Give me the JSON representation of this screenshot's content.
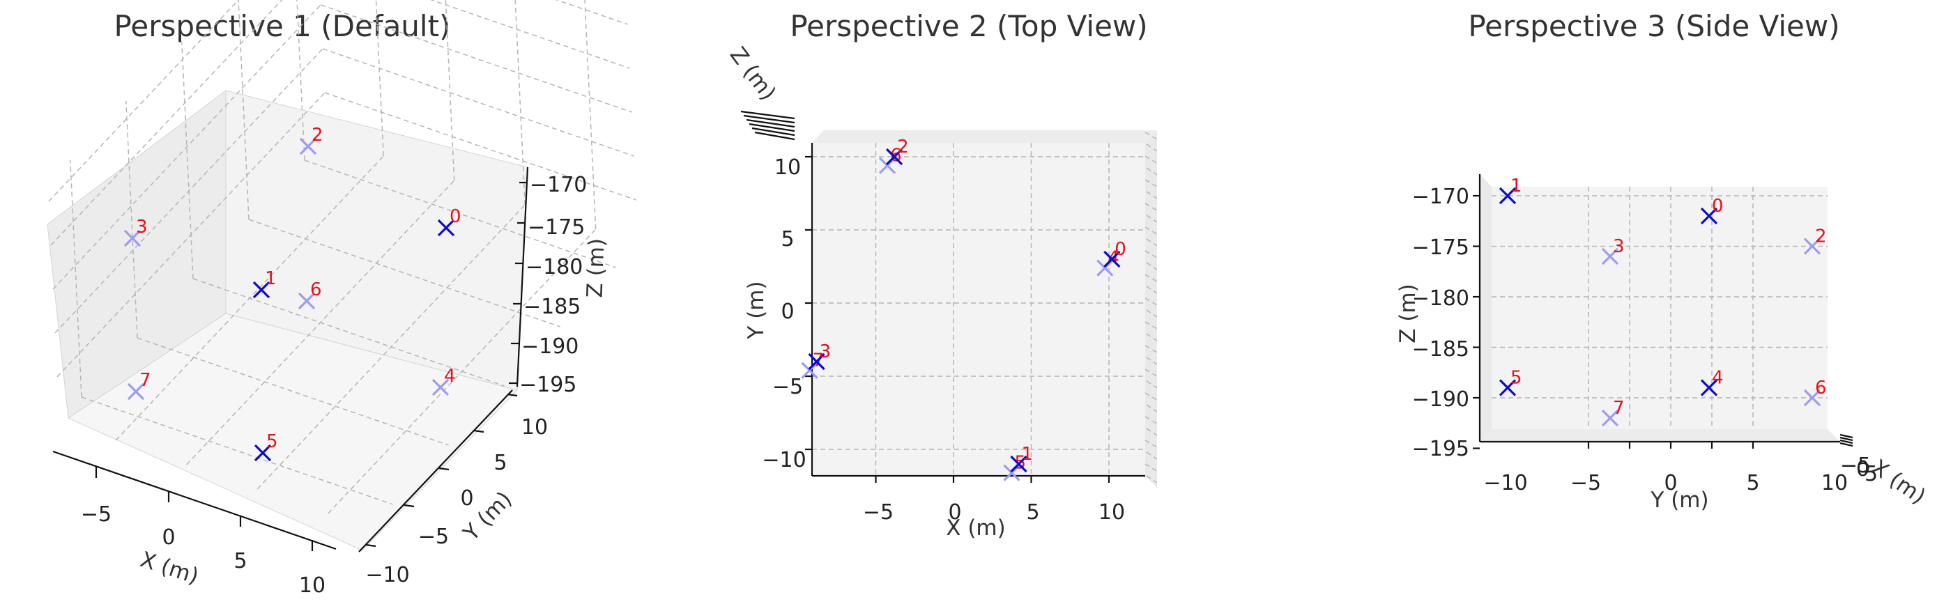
{
  "colors": {
    "marker_near": "#0a0ad2",
    "marker_far": "#9c9cf0",
    "point_label": "#e8101a",
    "pane": "#f2f2f2",
    "title": "#333333"
  },
  "chart_data": {
    "type": "scatter",
    "marker": "x",
    "points": [
      {
        "label": "0",
        "x": 11,
        "y": 3,
        "z": -172
      },
      {
        "label": "1",
        "x": 5,
        "y": -11,
        "z": -170
      },
      {
        "label": "2",
        "x": -3,
        "y": 10,
        "z": -175
      },
      {
        "label": "3",
        "x": -8,
        "y": -4,
        "z": -176
      },
      {
        "label": "4",
        "x": 11,
        "y": 3,
        "z": -189
      },
      {
        "label": "5",
        "x": 5,
        "y": -11,
        "z": -189
      },
      {
        "label": "6",
        "x": -3,
        "y": 10,
        "z": -190
      },
      {
        "label": "7",
        "x": -8,
        "y": -4,
        "z": -192
      }
    ],
    "panels": [
      {
        "title": "Perspective 1 (Default)",
        "view": "default",
        "xlabel": "X (m)",
        "ylabel": "Y (m)",
        "zlabel": "Z (m)",
        "xticks": [
          "−5",
          "0",
          "5",
          "10"
        ],
        "yticks": [
          "−10",
          "−5",
          "0",
          "5",
          "10"
        ],
        "zticks": [
          "−170",
          "−175",
          "−180",
          "−185",
          "−190",
          "−195"
        ],
        "grid": true
      },
      {
        "title": "Perspective 2 (Top View)",
        "view": "top",
        "xlabel": "X (m)",
        "ylabel": "Y (m)",
        "zlabel": "Z (m)",
        "xticks": [
          "−5",
          "0",
          "5",
          "10"
        ],
        "yticks": [
          "10",
          "5",
          "0",
          "−5",
          "−10"
        ],
        "grid": true
      },
      {
        "title": "Perspective 3 (Side View)",
        "view": "side",
        "xlabel": "Y (m)",
        "ylabel": "Z (m)",
        "zlabel": "X (m)",
        "xticks": [
          "−10",
          "−5",
          "0",
          "5",
          "10"
        ],
        "yticks": [
          "−170",
          "−175",
          "−180",
          "−185",
          "−190",
          "−195"
        ],
        "depth_ticks": [
          "0",
          "5",
          "−5"
        ],
        "grid": true
      }
    ]
  }
}
